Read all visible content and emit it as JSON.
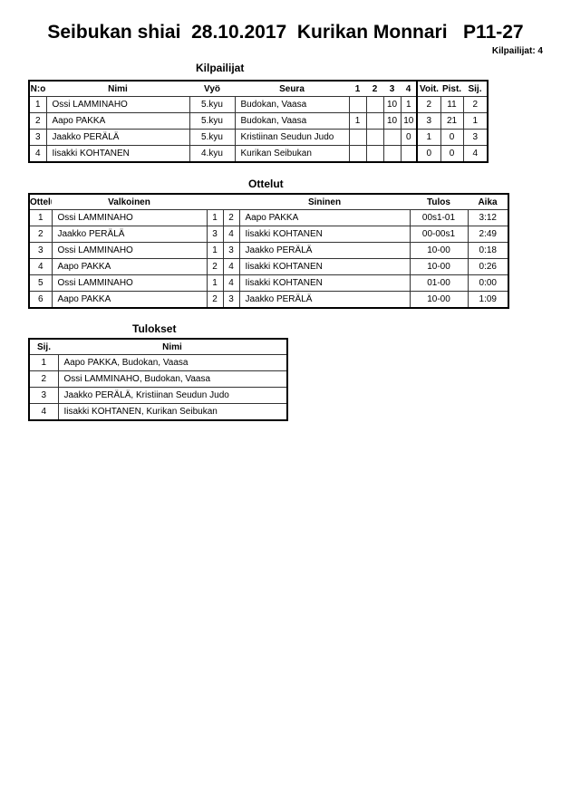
{
  "header": {
    "title": "Seibukan shiai  28.10.2017  Kurikan Monnari   P11-27",
    "count": "Kilpailijat: 4"
  },
  "competitors": {
    "title": "Kilpailijat",
    "columns": [
      "N:o",
      "Nimi",
      "Vyö",
      "Seura",
      "1",
      "2",
      "3",
      "4",
      "Voit.",
      "Pist.",
      "Sij."
    ],
    "rows": [
      [
        "1",
        "Ossi LAMMINAHO",
        "5.kyu",
        "Budokan, Vaasa",
        "",
        "",
        "10",
        "1",
        "2",
        "11",
        "2"
      ],
      [
        "2",
        "Aapo PAKKA",
        "5.kyu",
        "Budokan, Vaasa",
        "1",
        "",
        "10",
        "10",
        "3",
        "21",
        "1"
      ],
      [
        "3",
        "Jaakko PERÄLÄ",
        "5.kyu",
        "Kristiinan Seudun Judo",
        "",
        "",
        "",
        "0",
        "1",
        "0",
        "3"
      ],
      [
        "4",
        "Iisakki KOHTANEN",
        "4.kyu",
        "Kurikan Seibukan",
        "",
        "",
        "",
        "",
        "0",
        "0",
        "4"
      ]
    ]
  },
  "matches": {
    "title": "Ottelut",
    "columns": [
      "Ottelu",
      "Valkoinen",
      "",
      "",
      "Sininen",
      "Tulos",
      "Aika"
    ],
    "rows": [
      [
        "1",
        "Ossi LAMMINAHO",
        "1",
        "2",
        "Aapo PAKKA",
        "00s1-01",
        "3:12"
      ],
      [
        "2",
        "Jaakko PERÄLÄ",
        "3",
        "4",
        "Iisakki KOHTANEN",
        "00-00s1",
        "2:49"
      ],
      [
        "3",
        "Ossi LAMMINAHO",
        "1",
        "3",
        "Jaakko PERÄLÄ",
        "10-00",
        "0:18"
      ],
      [
        "4",
        "Aapo PAKKA",
        "2",
        "4",
        "Iisakki KOHTANEN",
        "10-00",
        "0:26"
      ],
      [
        "5",
        "Ossi LAMMINAHO",
        "1",
        "4",
        "Iisakki KOHTANEN",
        "01-00",
        "0:00"
      ],
      [
        "6",
        "Aapo PAKKA",
        "2",
        "3",
        "Jaakko PERÄLÄ",
        "10-00",
        "1:09"
      ]
    ]
  },
  "results": {
    "title": "Tulokset",
    "columns": [
      "Sij.",
      "Nimi"
    ],
    "rows": [
      [
        "1",
        "Aapo PAKKA, Budokan, Vaasa"
      ],
      [
        "2",
        "Ossi LAMMINAHO, Budokan, Vaasa"
      ],
      [
        "3",
        "Jaakko PERÄLÄ, Kristiinan Seudun Judo"
      ],
      [
        "4",
        "Iisakki KOHTANEN, Kurikan Seibukan"
      ]
    ]
  }
}
